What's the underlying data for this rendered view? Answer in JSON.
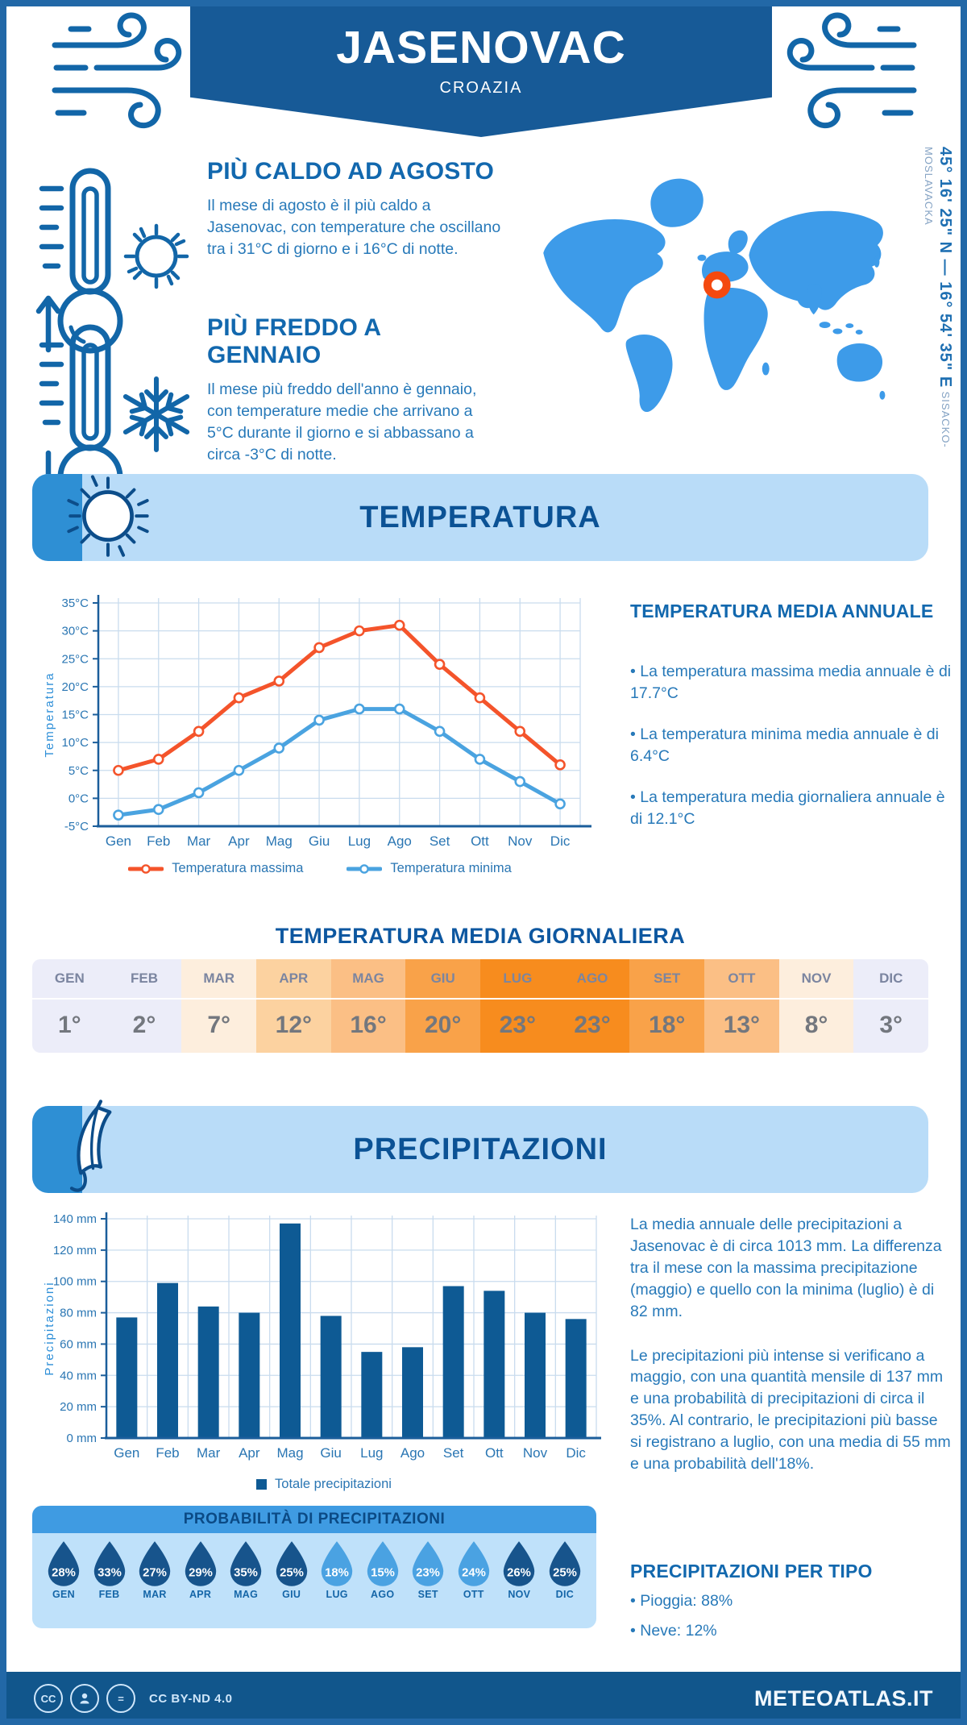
{
  "header": {
    "title": "JASENOVAC",
    "subtitle": "CROAZIA",
    "coordinates": "45° 16' 25\" N — 16° 54' 35\" E",
    "region": "SISACKO-MOSLAVACKA"
  },
  "highlights": {
    "hot": {
      "title": "PIÙ CALDO AD AGOSTO",
      "text": "Il mese di agosto è il più caldo a Jasenovac, con temperature che oscillano tra i 31°C di giorno e i 16°C di notte."
    },
    "cold": {
      "title": "PIÙ FREDDO A GENNAIO",
      "text": "Il mese più freddo dell'anno è gennaio, con temperature medie che arrivano a 5°C durante il giorno e si abbassano a circa -3°C di notte."
    }
  },
  "temperature_section": {
    "band_title": "TEMPERATURA",
    "annual": {
      "title": "TEMPERATURA MEDIA ANNUALE",
      "bullets": [
        "• La temperatura massima media annuale è di 17.7°C",
        "• La temperatura minima media annuale è di 6.4°C",
        "• La temperatura media giornaliera annuale è di 12.1°C"
      ]
    },
    "daily_title": "TEMPERATURA MEDIA GIORNALIERA",
    "table": {
      "months": [
        "GEN",
        "FEB",
        "MAR",
        "APR",
        "MAG",
        "GIU",
        "LUG",
        "AGO",
        "SET",
        "OTT",
        "NOV",
        "DIC"
      ],
      "values": [
        "1°",
        "2°",
        "7°",
        "12°",
        "16°",
        "20°",
        "23°",
        "23°",
        "18°",
        "13°",
        "8°",
        "3°"
      ],
      "cell_colors": [
        "#ecedf9",
        "#ecedf9",
        "#fdeedd",
        "#fcd2a0",
        "#fbbf85",
        "#f9a249",
        "#f78c1e",
        "#f78c1e",
        "#f9a249",
        "#fbbf85",
        "#fdeedd",
        "#ecedf9"
      ]
    }
  },
  "precipitation_section": {
    "band_title": "PRECIPITAZIONI",
    "paragraphs": [
      "La media annuale delle precipitazioni a Jasenovac è di circa 1013 mm. La differenza tra il mese con la massima precipitazione (maggio) e quello con la minima (luglio) è di 82 mm.",
      "Le precipitazioni più intense si verificano a maggio, con una quantità mensile di 137 mm e una probabilità di precipitazioni di circa il 35%. Al contrario, le precipitazioni più basse si registrano a luglio, con una media di 55 mm e una probabilità dell'18%."
    ],
    "probability": {
      "title": "PROBABILITÀ DI PRECIPITAZIONI",
      "months": [
        "GEN",
        "FEB",
        "MAR",
        "APR",
        "MAG",
        "GIU",
        "LUG",
        "AGO",
        "SET",
        "OTT",
        "NOV",
        "DIC"
      ],
      "values": [
        "28%",
        "33%",
        "27%",
        "29%",
        "35%",
        "25%",
        "18%",
        "15%",
        "23%",
        "24%",
        "26%",
        "25%"
      ],
      "shades": [
        "dark",
        "dark",
        "dark",
        "dark",
        "dark",
        "dark",
        "light",
        "light",
        "light",
        "light",
        "dark",
        "dark"
      ],
      "shade_colors": {
        "dark": "#17548c",
        "light": "#4aa2e2"
      }
    },
    "by_type": {
      "title": "PRECIPITAZIONI PER TIPO",
      "bullets": [
        "• Pioggia: 88%",
        "• Neve: 12%"
      ]
    }
  },
  "chart_data": [
    {
      "type": "line",
      "categories": [
        "Gen",
        "Feb",
        "Mar",
        "Apr",
        "Mag",
        "Giu",
        "Lug",
        "Ago",
        "Set",
        "Ott",
        "Nov",
        "Dic"
      ],
      "series": [
        {
          "name": "Temperatura massima",
          "color": "#f4542b",
          "values": [
            5,
            7,
            12,
            18,
            21,
            27,
            30,
            31,
            24,
            18,
            12,
            6
          ]
        },
        {
          "name": "Temperatura minima",
          "color": "#4aa3e0",
          "values": [
            -3,
            -2,
            1,
            5,
            9,
            14,
            16,
            16,
            12,
            7,
            3,
            -1
          ]
        }
      ],
      "ylabel": "Temperatura",
      "ylim": [
        -5,
        35
      ],
      "ytick_step": 5,
      "ytick_suffix": "°C",
      "grid": true,
      "legend_position": "bottom"
    },
    {
      "type": "bar",
      "categories": [
        "Gen",
        "Feb",
        "Mar",
        "Apr",
        "Mag",
        "Giu",
        "Lug",
        "Ago",
        "Set",
        "Ott",
        "Nov",
        "Dic"
      ],
      "values": [
        77,
        99,
        84,
        80,
        137,
        78,
        55,
        58,
        97,
        94,
        80,
        76
      ],
      "series_name": "Totale precipitazioni",
      "bar_color": "#0e5a94",
      "ylabel": "Precipitazioni",
      "ylim": [
        0,
        140
      ],
      "ytick_step": 20,
      "ytick_suffix": " mm",
      "grid": true,
      "legend_position": "bottom"
    }
  ],
  "colors": {
    "frame": "#2268a7",
    "banner": "#175a97",
    "heading": "#1268ae",
    "body_text": "#2779b9",
    "band_light": "#b9dcf8",
    "band_mid": "#2e8fd4",
    "map": "#3d9be9",
    "marker": "#f4490f",
    "grid_line": "#c9dcee",
    "axis": "#1b5e9b"
  },
  "footer": {
    "license": "CC BY-ND 4.0",
    "site": "METEOATLAS.IT"
  }
}
